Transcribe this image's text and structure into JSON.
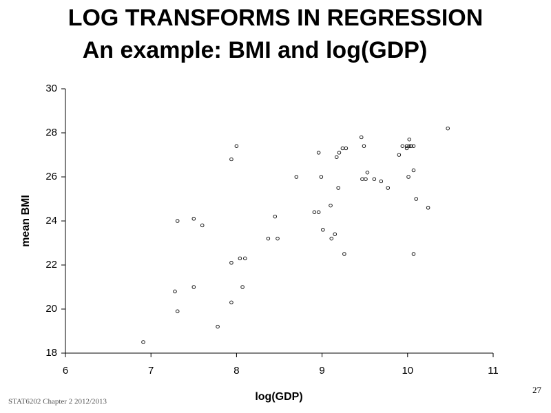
{
  "chart_data": {
    "type": "scatter",
    "title": "LOG TRANSFORMS IN REGRESSION",
    "subtitle": "An example: BMI and log(GDP)",
    "x_label": "log(GDP)",
    "y_label": "mean BMI",
    "xlim": [
      6,
      11
    ],
    "xticks": [
      6,
      7,
      8,
      9,
      10,
      11
    ],
    "ylim": [
      18,
      30
    ],
    "yticks": [
      18,
      20,
      22,
      24,
      26,
      28,
      30
    ],
    "grid": false,
    "color": "#000000",
    "x": [
      6.91,
      7.28,
      7.31,
      7.31,
      7.5,
      7.5,
      7.6,
      7.78,
      7.94,
      8.0,
      7.94,
      7.94,
      8.04,
      8.1,
      8.07,
      8.37,
      8.45,
      8.48,
      8.7,
      8.91,
      8.96,
      8.96,
      8.99,
      9.01,
      9.1,
      9.11,
      9.15,
      9.17,
      9.19,
      9.2,
      9.24,
      9.28,
      9.26,
      9.46,
      9.47,
      9.49,
      9.51,
      9.53,
      9.61,
      9.69,
      9.77,
      9.9,
      9.94,
      9.99,
      10.01,
      10.02,
      10.02,
      10.04,
      10.07,
      10.07,
      10.07,
      10.1,
      10.24,
      10.47,
      9.99
    ],
    "values": [
      18.5,
      20.8,
      19.9,
      24.0,
      21.0,
      24.1,
      23.8,
      19.2,
      26.8,
      27.4,
      22.1,
      20.3,
      22.3,
      22.3,
      21.0,
      23.2,
      24.2,
      23.2,
      26.0,
      24.4,
      24.4,
      27.1,
      26.0,
      23.6,
      24.7,
      23.2,
      23.4,
      26.9,
      25.5,
      27.1,
      27.3,
      27.3,
      22.5,
      27.8,
      25.9,
      27.4,
      25.9,
      26.2,
      25.9,
      25.8,
      25.5,
      27.0,
      27.4,
      27.4,
      26.0,
      27.7,
      27.4,
      27.4,
      27.4,
      26.3,
      22.5,
      25.0,
      24.6,
      28.2,
      27.3
    ]
  },
  "footer": "STAT6202 Chapter 2 2012/2013",
  "page_number": "27"
}
